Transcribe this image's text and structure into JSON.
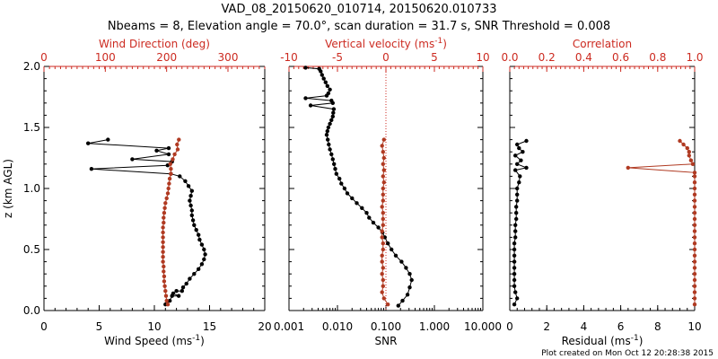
{
  "chart_data": {
    "title_line1": "VAD_08_20150620_010714, 20150620.010733",
    "title_line2": "Nbeams = 8, Elevation angle = 70.0°, scan duration = 31.7 s, SNR Threshold = 0.008",
    "footer": "Plot created on Mon Oct 12 20:28:38 2015",
    "y_axis": {
      "label": "z (km AGL)",
      "range": [
        0,
        2.0
      ],
      "ticks": [
        "0.0",
        "0.5",
        "1.0",
        "1.5",
        "2.0"
      ]
    },
    "panels": [
      {
        "type": "line",
        "bottom_axis": {
          "label": "Wind Speed (ms",
          "sup": "-1",
          "label_end": ")",
          "range": [
            0,
            20
          ],
          "ticks": [
            "0",
            "5",
            "10",
            "15",
            "20"
          ]
        },
        "top_axis": {
          "label": "Wind Direction (deg)",
          "range": [
            0,
            360
          ],
          "ticks": [
            "0",
            "100",
            "200",
            "300"
          ]
        },
        "series": [
          {
            "axis": "bottom",
            "color": "#000000",
            "data": [
              [
                11.0,
                0.05
              ],
              [
                11.4,
                0.08
              ],
              [
                11.6,
                0.12
              ],
              [
                12.2,
                0.12
              ],
              [
                11.7,
                0.14
              ],
              [
                12.0,
                0.16
              ],
              [
                12.5,
                0.16
              ],
              [
                12.6,
                0.19
              ],
              [
                12.9,
                0.22
              ],
              [
                13.2,
                0.26
              ],
              [
                13.6,
                0.3
              ],
              [
                14.0,
                0.34
              ],
              [
                14.3,
                0.38
              ],
              [
                14.5,
                0.42
              ],
              [
                14.6,
                0.46
              ],
              [
                14.5,
                0.5
              ],
              [
                14.3,
                0.54
              ],
              [
                14.1,
                0.58
              ],
              [
                14.0,
                0.62
              ],
              [
                13.8,
                0.66
              ],
              [
                13.6,
                0.7
              ],
              [
                13.5,
                0.74
              ],
              [
                13.4,
                0.78
              ],
              [
                13.4,
                0.82
              ],
              [
                13.3,
                0.86
              ],
              [
                13.2,
                0.9
              ],
              [
                13.3,
                0.94
              ],
              [
                13.4,
                0.98
              ],
              [
                13.1,
                1.02
              ],
              [
                12.8,
                1.06
              ],
              [
                12.3,
                1.1
              ],
              [
                11.5,
                1.12
              ],
              [
                4.3,
                1.16
              ],
              [
                11.2,
                1.19
              ],
              [
                11.6,
                1.22
              ],
              [
                8.0,
                1.24
              ],
              [
                11.3,
                1.28
              ],
              [
                10.2,
                1.31
              ],
              [
                11.3,
                1.33
              ],
              [
                4.0,
                1.37
              ],
              [
                5.8,
                1.4
              ]
            ]
          },
          {
            "axis": "top",
            "color": "#b03a22",
            "data": [
              [
                202,
                0.05
              ],
              [
                200,
                0.08
              ],
              [
                199,
                0.12
              ],
              [
                198,
                0.16
              ],
              [
                197,
                0.2
              ],
              [
                196,
                0.24
              ],
              [
                196,
                0.28
              ],
              [
                195,
                0.32
              ],
              [
                195,
                0.36
              ],
              [
                194,
                0.4
              ],
              [
                194,
                0.44
              ],
              [
                194,
                0.48
              ],
              [
                194,
                0.52
              ],
              [
                194,
                0.56
              ],
              [
                194,
                0.6
              ],
              [
                194,
                0.64
              ],
              [
                194,
                0.68
              ],
              [
                195,
                0.72
              ],
              [
                195,
                0.76
              ],
              [
                196,
                0.8
              ],
              [
                197,
                0.84
              ],
              [
                198,
                0.88
              ],
              [
                200,
                0.92
              ],
              [
                202,
                0.96
              ],
              [
                203,
                1.0
              ],
              [
                204,
                1.04
              ],
              [
                205,
                1.08
              ],
              [
                207,
                1.12
              ],
              [
                207,
                1.16
              ],
              [
                206,
                1.2
              ],
              [
                210,
                1.24
              ],
              [
                213,
                1.28
              ],
              [
                218,
                1.32
              ],
              [
                217,
                1.36
              ],
              [
                220,
                1.4
              ]
            ]
          }
        ]
      },
      {
        "type": "line",
        "bottom_axis": {
          "label": "SNR",
          "scale": "log",
          "range": [
            0.001,
            10
          ],
          "ticks": [
            "0.001",
            "0.010",
            "0.100",
            "1.000",
            "10.000"
          ]
        },
        "top_axis": {
          "label": "Vertical velocity (ms",
          "sup": "-1",
          "label_end": ")",
          "range": [
            -10,
            10
          ],
          "ticks": [
            "-10",
            "-5",
            "0",
            "5",
            "10"
          ]
        },
        "series": [
          {
            "axis": "bottom",
            "color": "#000000",
            "data": [
              [
                0.18,
                0.04
              ],
              [
                0.22,
                0.08
              ],
              [
                0.28,
                0.13
              ],
              [
                0.31,
                0.19
              ],
              [
                0.34,
                0.25
              ],
              [
                0.31,
                0.3
              ],
              [
                0.26,
                0.35
              ],
              [
                0.21,
                0.4
              ],
              [
                0.16,
                0.45
              ],
              [
                0.13,
                0.5
              ],
              [
                0.11,
                0.55
              ],
              [
                0.095,
                0.6
              ],
              [
                0.085,
                0.64
              ],
              [
                0.07,
                0.68
              ],
              [
                0.055,
                0.72
              ],
              [
                0.045,
                0.76
              ],
              [
                0.04,
                0.8
              ],
              [
                0.032,
                0.84
              ],
              [
                0.025,
                0.88
              ],
              [
                0.02,
                0.92
              ],
              [
                0.016,
                0.96
              ],
              [
                0.014,
                1.0
              ],
              [
                0.012,
                1.04
              ],
              [
                0.011,
                1.08
              ],
              [
                0.0095,
                1.12
              ],
              [
                0.009,
                1.16
              ],
              [
                0.0085,
                1.2
              ],
              [
                0.008,
                1.24
              ],
              [
                0.0075,
                1.28
              ],
              [
                0.007,
                1.32
              ],
              [
                0.0066,
                1.36
              ],
              [
                0.0063,
                1.4
              ],
              [
                0.006,
                1.44
              ],
              [
                0.0062,
                1.47
              ],
              [
                0.0065,
                1.5
              ],
              [
                0.007,
                1.53
              ],
              [
                0.0075,
                1.56
              ],
              [
                0.008,
                1.59
              ],
              [
                0.0082,
                1.62
              ],
              [
                0.0084,
                1.65
              ],
              [
                0.0028,
                1.68
              ],
              [
                0.008,
                1.7
              ],
              [
                0.0075,
                1.72
              ],
              [
                0.0022,
                1.74
              ],
              [
                0.006,
                1.76
              ],
              [
                0.0065,
                1.78
              ],
              [
                0.007,
                1.81
              ],
              [
                0.0062,
                1.84
              ],
              [
                0.0057,
                1.87
              ],
              [
                0.0052,
                1.9
              ],
              [
                0.0048,
                1.93
              ],
              [
                0.0045,
                1.96
              ],
              [
                0.0042,
                1.98
              ],
              [
                0.0022,
                1.99
              ]
            ]
          },
          {
            "axis": "top",
            "color": "#b03a22",
            "data": [
              [
                0.2,
                0.05
              ],
              [
                -0.2,
                0.1
              ],
              [
                -0.4,
                0.15
              ],
              [
                -0.3,
                0.2
              ],
              [
                -0.3,
                0.25
              ],
              [
                -0.4,
                0.3
              ],
              [
                -0.3,
                0.35
              ],
              [
                -0.4,
                0.4
              ],
              [
                -0.4,
                0.45
              ],
              [
                -0.3,
                0.5
              ],
              [
                -0.3,
                0.55
              ],
              [
                -0.4,
                0.6
              ],
              [
                -0.4,
                0.65
              ],
              [
                -0.3,
                0.7
              ],
              [
                -0.3,
                0.75
              ],
              [
                -0.3,
                0.8
              ],
              [
                -0.4,
                0.85
              ],
              [
                -0.3,
                0.9
              ],
              [
                -0.3,
                0.95
              ],
              [
                -0.3,
                1.0
              ],
              [
                -0.2,
                1.05
              ],
              [
                -0.3,
                1.1
              ],
              [
                -0.2,
                1.15
              ],
              [
                -0.3,
                1.2
              ],
              [
                -0.2,
                1.25
              ],
              [
                -0.3,
                1.3
              ],
              [
                -0.4,
                1.35
              ],
              [
                -0.2,
                1.4
              ]
            ]
          }
        ]
      },
      {
        "type": "line",
        "bottom_axis": {
          "label": "Residual (ms",
          "sup": "-1",
          "label_end": ")",
          "range": [
            0,
            10
          ],
          "ticks": [
            "0",
            "2",
            "4",
            "6",
            "8",
            "10"
          ]
        },
        "top_axis": {
          "label": "Correlation",
          "range": [
            0,
            1.0
          ],
          "ticks": [
            "0.0",
            "0.2",
            "0.4",
            "0.6",
            "0.8",
            "1.0"
          ]
        },
        "series": [
          {
            "axis": "bottom",
            "color": "#000000",
            "data": [
              [
                0.25,
                0.05
              ],
              [
                0.4,
                0.1
              ],
              [
                0.3,
                0.15
              ],
              [
                0.25,
                0.2
              ],
              [
                0.25,
                0.25
              ],
              [
                0.25,
                0.3
              ],
              [
                0.25,
                0.35
              ],
              [
                0.25,
                0.4
              ],
              [
                0.25,
                0.45
              ],
              [
                0.25,
                0.5
              ],
              [
                0.25,
                0.55
              ],
              [
                0.3,
                0.6
              ],
              [
                0.3,
                0.65
              ],
              [
                0.3,
                0.7
              ],
              [
                0.35,
                0.75
              ],
              [
                0.35,
                0.8
              ],
              [
                0.35,
                0.85
              ],
              [
                0.4,
                0.9
              ],
              [
                0.4,
                0.95
              ],
              [
                0.4,
                1.0
              ],
              [
                0.5,
                1.05
              ],
              [
                0.55,
                1.1
              ],
              [
                0.3,
                1.15
              ],
              [
                0.9,
                1.17
              ],
              [
                0.4,
                1.2
              ],
              [
                0.6,
                1.23
              ],
              [
                0.3,
                1.27
              ],
              [
                0.7,
                1.3
              ],
              [
                0.5,
                1.33
              ],
              [
                0.4,
                1.36
              ],
              [
                0.9,
                1.39
              ]
            ]
          },
          {
            "axis": "top",
            "color": "#b03a22",
            "data": [
              [
                1.0,
                0.05
              ],
              [
                1.0,
                0.1
              ],
              [
                1.0,
                0.15
              ],
              [
                1.0,
                0.2
              ],
              [
                1.0,
                0.25
              ],
              [
                1.0,
                0.3
              ],
              [
                1.0,
                0.35
              ],
              [
                1.0,
                0.4
              ],
              [
                1.0,
                0.45
              ],
              [
                1.0,
                0.5
              ],
              [
                1.0,
                0.55
              ],
              [
                1.0,
                0.6
              ],
              [
                1.0,
                0.65
              ],
              [
                1.0,
                0.7
              ],
              [
                1.0,
                0.75
              ],
              [
                1.0,
                0.8
              ],
              [
                1.0,
                0.85
              ],
              [
                1.0,
                0.9
              ],
              [
                1.0,
                0.95
              ],
              [
                1.0,
                1.0
              ],
              [
                1.0,
                1.05
              ],
              [
                1.0,
                1.1
              ],
              [
                1.0,
                1.13
              ],
              [
                0.64,
                1.17
              ],
              [
                0.99,
                1.2
              ],
              [
                0.98,
                1.23
              ],
              [
                0.97,
                1.27
              ],
              [
                0.97,
                1.3
              ],
              [
                0.96,
                1.33
              ],
              [
                0.94,
                1.36
              ],
              [
                0.92,
                1.39
              ]
            ]
          }
        ]
      }
    ]
  }
}
